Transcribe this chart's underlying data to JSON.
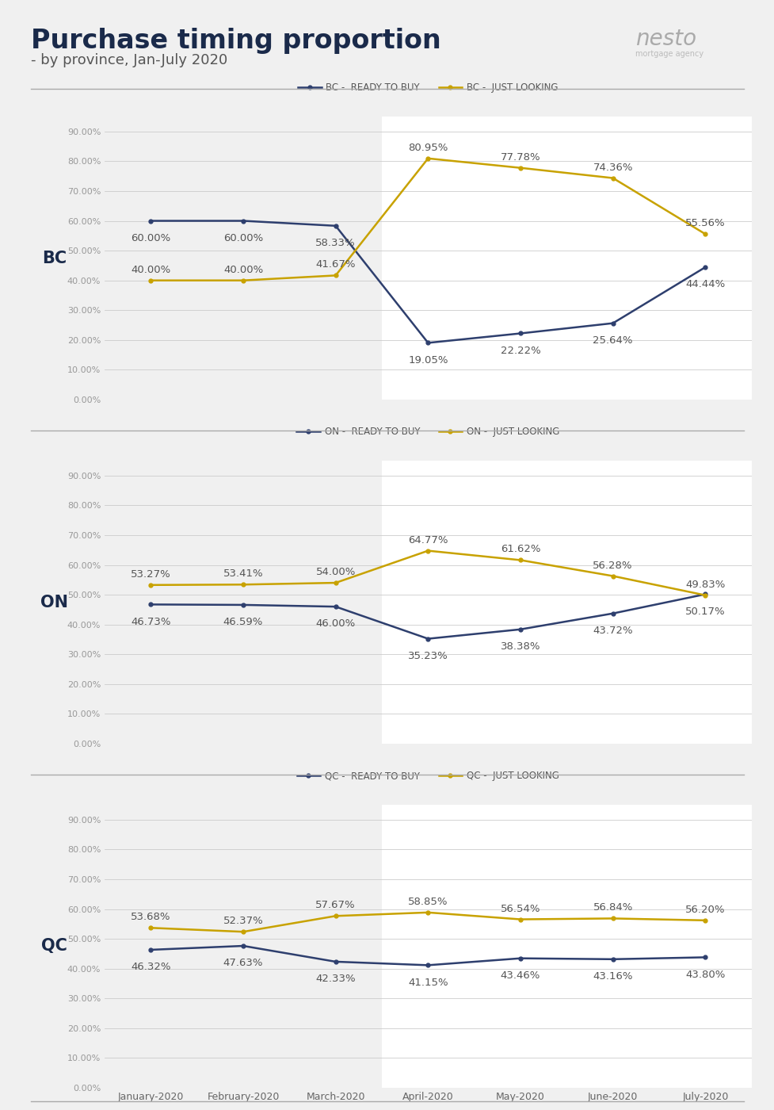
{
  "title": "Purchase timing proportion",
  "subtitle": "- by province, Jan-July 2020",
  "months": [
    "January-2020",
    "February-2020",
    "March-2020",
    "April-2020",
    "May-2020",
    "June-2020",
    "July-2020"
  ],
  "provinces": [
    "BC",
    "ON",
    "QC"
  ],
  "bc_ready": [
    60.0,
    60.0,
    58.33,
    19.05,
    22.22,
    25.64,
    44.44
  ],
  "bc_looking": [
    40.0,
    40.0,
    41.67,
    80.95,
    77.78,
    74.36,
    55.56
  ],
  "on_ready": [
    46.73,
    46.59,
    46.0,
    35.23,
    38.38,
    43.72,
    50.17
  ],
  "on_looking": [
    53.27,
    53.41,
    54.0,
    64.77,
    61.62,
    56.28,
    49.83
  ],
  "qc_ready": [
    46.32,
    47.63,
    42.33,
    41.15,
    43.46,
    43.16,
    43.8
  ],
  "qc_looking": [
    53.68,
    52.37,
    57.67,
    58.85,
    56.54,
    56.84,
    56.2
  ],
  "ready_color": "#2e3f6e",
  "looking_color": "#c8a200",
  "bg_color": "#f0f0f0",
  "chart_bg": "#f0f0f0",
  "highlight_bg": "#ffffff",
  "yticks": [
    0,
    10,
    20,
    30,
    40,
    50,
    60,
    70,
    80,
    90
  ],
  "title_fontsize": 24,
  "subtitle_fontsize": 13,
  "annotation_fontsize": 9.5,
  "province_fontsize": 15,
  "legend_fontsize": 8.5,
  "tick_fontsize": 8,
  "xticklabel_fontsize": 9
}
